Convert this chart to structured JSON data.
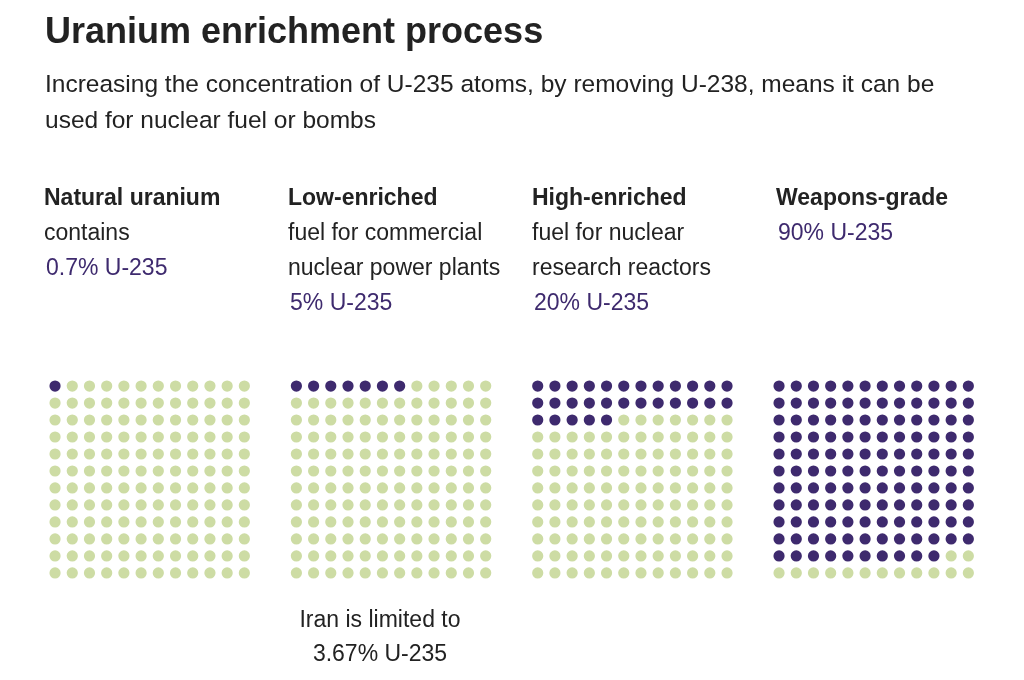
{
  "chart_data": {
    "type": "other",
    "title": "Uranium enrichment process",
    "subtitle": "Increasing the concentration of U-235 atoms, by removing U-238, means it can be used for nuclear fuel or bombs",
    "categories": [
      "Natural uranium",
      "Low-enriched",
      "High-enriched",
      "Weapons-grade"
    ],
    "values": [
      0.7,
      5,
      20,
      90
    ],
    "value_labels": [
      "0.7% U-235",
      "5% U-235",
      "20% U-235",
      "90% U-235"
    ],
    "color": "#3e2a6e",
    "annotations": [
      {
        "text": "contains",
        "x": "Natural uranium"
      },
      {
        "text": "fuel for commercial nuclear power plants",
        "x": "Low-enriched"
      },
      {
        "text": "fuel for nuclear research reactors",
        "x": "High-enriched"
      },
      {
        "text": "Iran is limited to 3.67% U-235",
        "x": "Low-enriched"
      }
    ]
  }
}
